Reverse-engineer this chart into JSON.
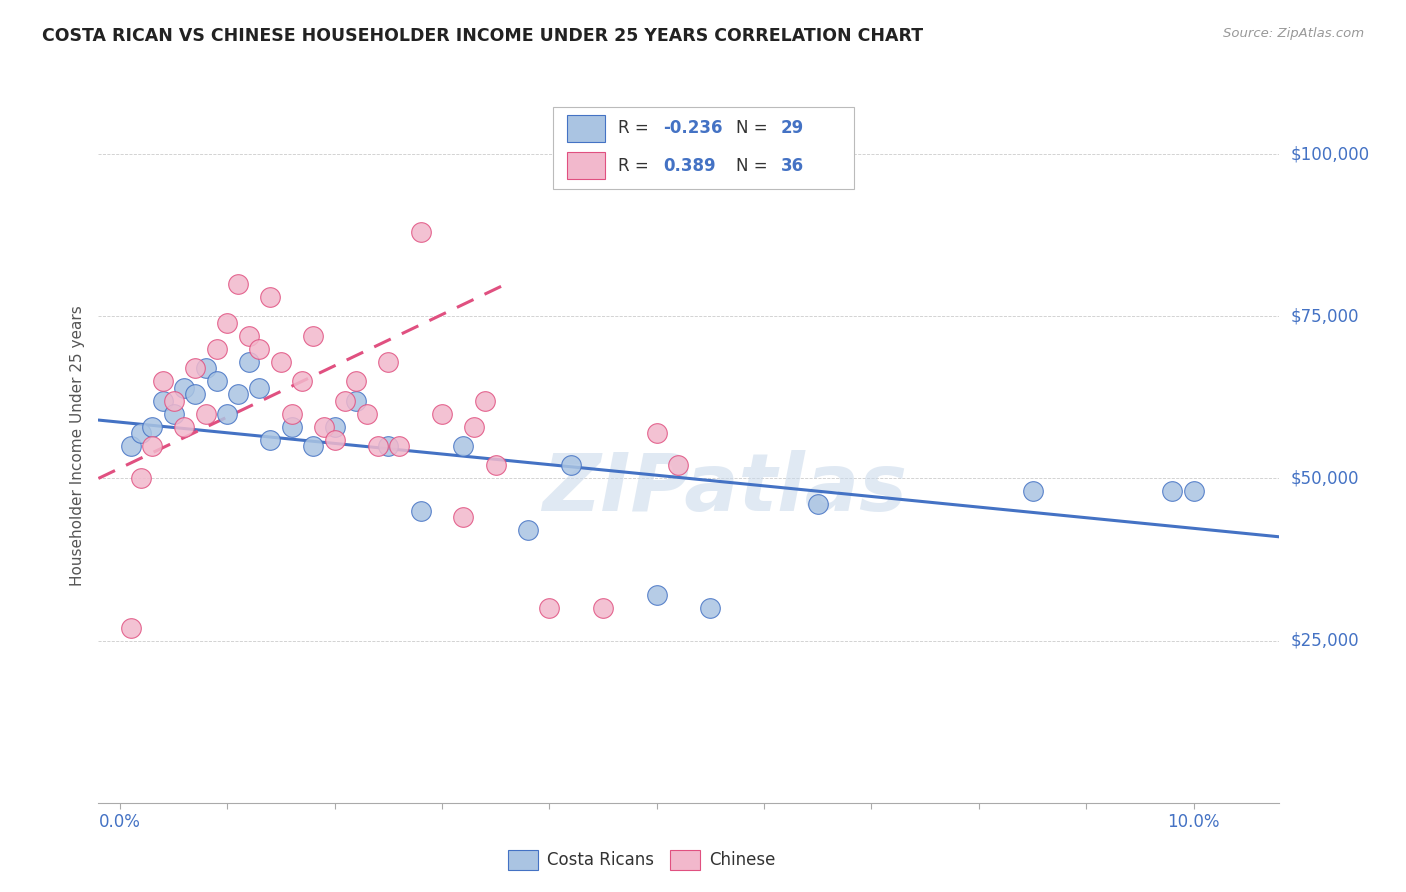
{
  "title": "COSTA RICAN VS CHINESE HOUSEHOLDER INCOME UNDER 25 YEARS CORRELATION CHART",
  "source": "Source: ZipAtlas.com",
  "ylabel": "Householder Income Under 25 years",
  "color_cr": "#aac4e2",
  "color_ch": "#f2b8cc",
  "color_cr_line": "#4472c4",
  "color_ch_line": "#e05080",
  "color_ytick": "#4472c4",
  "watermark": "ZIPatlas",
  "cr_R": -0.236,
  "cr_N": 29,
  "ch_R": 0.389,
  "ch_N": 36,
  "cr_points_x": [
    0.001,
    0.002,
    0.003,
    0.004,
    0.005,
    0.006,
    0.007,
    0.008,
    0.009,
    0.01,
    0.011,
    0.012,
    0.013,
    0.014,
    0.016,
    0.018,
    0.02,
    0.022,
    0.025,
    0.028,
    0.032,
    0.038,
    0.042,
    0.05,
    0.055,
    0.065,
    0.085,
    0.098,
    0.1
  ],
  "cr_points_y": [
    55000,
    57000,
    58000,
    62000,
    60000,
    64000,
    63000,
    67000,
    65000,
    60000,
    63000,
    68000,
    64000,
    56000,
    58000,
    55000,
    58000,
    62000,
    55000,
    45000,
    55000,
    42000,
    52000,
    32000,
    30000,
    46000,
    48000,
    48000,
    48000
  ],
  "ch_points_x": [
    0.001,
    0.002,
    0.003,
    0.004,
    0.005,
    0.006,
    0.007,
    0.008,
    0.009,
    0.01,
    0.011,
    0.012,
    0.013,
    0.014,
    0.015,
    0.016,
    0.017,
    0.018,
    0.019,
    0.02,
    0.021,
    0.022,
    0.023,
    0.024,
    0.025,
    0.026,
    0.028,
    0.03,
    0.032,
    0.033,
    0.034,
    0.035,
    0.04,
    0.045,
    0.05,
    0.052
  ],
  "ch_points_y": [
    27000,
    50000,
    55000,
    65000,
    62000,
    58000,
    67000,
    60000,
    70000,
    74000,
    80000,
    72000,
    70000,
    78000,
    68000,
    60000,
    65000,
    72000,
    58000,
    56000,
    62000,
    65000,
    60000,
    55000,
    68000,
    55000,
    88000,
    60000,
    44000,
    58000,
    62000,
    52000,
    30000,
    30000,
    57000,
    52000
  ],
  "ytick_vals": [
    0,
    25000,
    50000,
    75000,
    100000
  ],
  "ytick_labels": [
    "",
    "$25,000",
    "$50,000",
    "$75,000",
    "$100,000"
  ],
  "xlim": [
    -0.002,
    0.108
  ],
  "ylim": [
    0,
    110000
  ]
}
